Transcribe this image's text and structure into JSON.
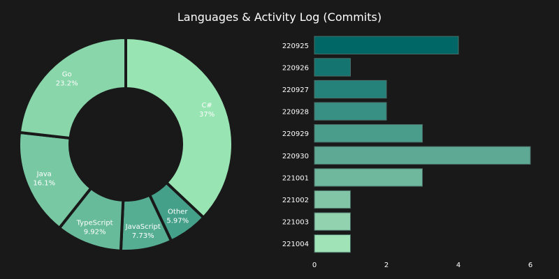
{
  "title": "Languages & Activity Log (Commits)",
  "chart_data": [
    {
      "type": "pie",
      "donut": true,
      "slices": [
        {
          "label": "C#",
          "value": 37,
          "pct_label": "37%",
          "color": "#98e4b3"
        },
        {
          "label": "Other",
          "value": 5.97,
          "pct_label": "5.97%",
          "color": "#45a08a"
        },
        {
          "label": "JavaScript",
          "value": 7.73,
          "pct_label": "7.73%",
          "color": "#56ae92"
        },
        {
          "label": "TypeScript",
          "value": 9.92,
          "pct_label": "9.92%",
          "color": "#67bb9a"
        },
        {
          "label": "Java",
          "value": 16.1,
          "pct_label": "16.1%",
          "color": "#78c8a3"
        },
        {
          "label": "Go",
          "value": 23.2,
          "pct_label": "23.2%",
          "color": "#89d6ab"
        }
      ]
    },
    {
      "type": "bar",
      "orientation": "horizontal",
      "categories": [
        "220925",
        "220926",
        "220927",
        "220928",
        "220929",
        "220930",
        "221001",
        "221002",
        "221003",
        "221004"
      ],
      "values": [
        4,
        1,
        2,
        2,
        3,
        6,
        3,
        1,
        1,
        1
      ],
      "colors": [
        "#006666",
        "#137470",
        "#25827a",
        "#388f83",
        "#4a9c8b",
        "#5da994",
        "#6fb79d",
        "#82c4a6",
        "#92d2ae",
        "#9fe3b6"
      ],
      "xlim": [
        0,
        6.45
      ],
      "xticks": [
        0,
        2,
        4,
        6
      ],
      "grid": false
    }
  ]
}
